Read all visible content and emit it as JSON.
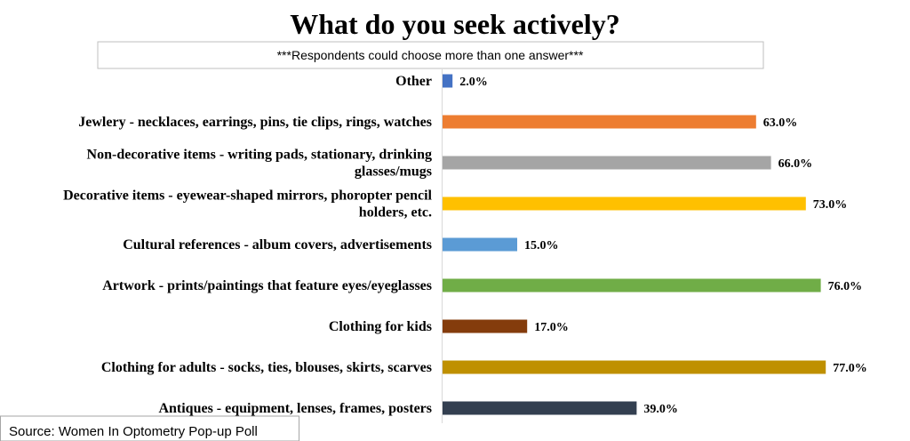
{
  "chart_data": {
    "type": "bar",
    "orientation": "horizontal",
    "title": "What do you seek actively?",
    "subtitle": "***Respondents could choose more than one answer***",
    "source": "Source: Women In Optometry Pop-up Poll",
    "categories": [
      [
        "Other"
      ],
      [
        "Jewlery - necklaces, earrings, pins, tie clips, rings, watches"
      ],
      [
        "Non-decorative items - writing pads, stationary, drinking",
        "glasses/mugs"
      ],
      [
        "Decorative items - eyewear-shaped mirrors, phoropter pencil",
        "holders, etc."
      ],
      [
        "Cultural references - album covers, advertisements"
      ],
      [
        "Artwork - prints/paintings that feature eyes/eyeglasses"
      ],
      [
        "Clothing for kids"
      ],
      [
        "Clothing for adults - socks, ties, blouses, skirts, scarves"
      ],
      [
        "Antiques - equipment, lenses, frames, posters"
      ]
    ],
    "values": [
      2.0,
      63.0,
      66.0,
      73.0,
      15.0,
      76.0,
      17.0,
      77.0,
      39.0
    ],
    "value_labels": [
      "2.0%",
      "63.0%",
      "66.0%",
      "73.0%",
      "15.0%",
      "76.0%",
      "17.0%",
      "77.0%",
      "39.0%"
    ],
    "colors": [
      "#4472C4",
      "#ED7D31",
      "#A5A5A5",
      "#FFC000",
      "#5B9BD5",
      "#70AD47",
      "#843C0C",
      "#BF9000",
      "#333F50"
    ],
    "xlim": [
      0,
      100
    ],
    "grid": false,
    "legend": "none"
  }
}
